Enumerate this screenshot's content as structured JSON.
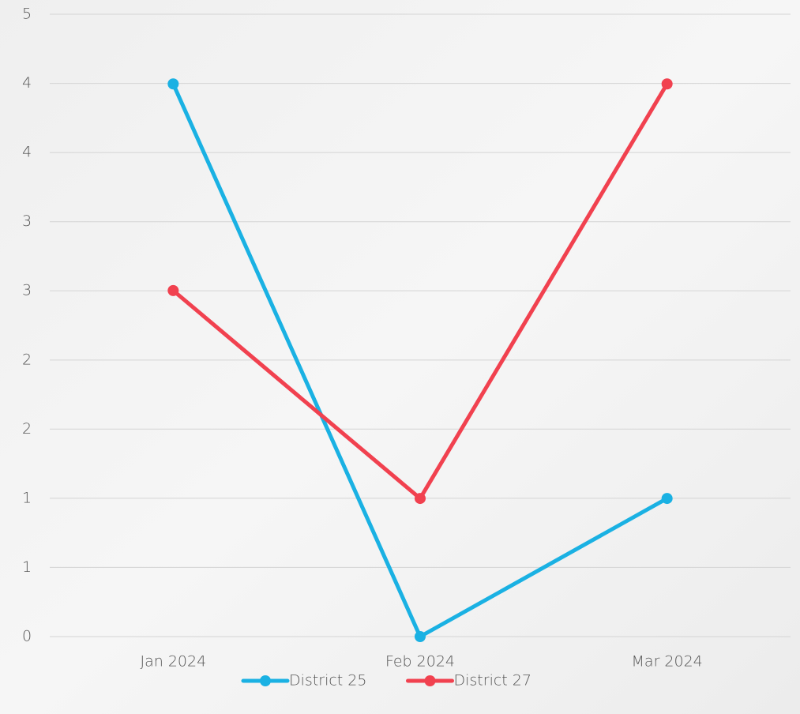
{
  "chart_data": {
    "type": "line",
    "categories": [
      "Jan 2024",
      "Feb 2024",
      "Mar 2024"
    ],
    "series": [
      {
        "name": "District 25",
        "color": "#1ab1e3",
        "values": [
          4.44,
          0,
          1.11
        ]
      },
      {
        "name": "District 27",
        "color": "#f1414f",
        "values": [
          2.78,
          1.11,
          4.44
        ]
      }
    ],
    "ylim": [
      0,
      5
    ],
    "yticks": [
      0,
      {
        "value": 0.556,
        "label": "1"
      },
      {
        "value": 1.111,
        "label": "1"
      },
      {
        "value": 1.667,
        "label": "2"
      },
      {
        "value": 2.222,
        "label": "2"
      },
      {
        "value": 2.778,
        "label": "3"
      },
      {
        "value": 3.333,
        "label": "3"
      },
      {
        "value": 3.889,
        "label": "4"
      },
      {
        "value": 4.444,
        "label": "4"
      },
      5
    ],
    "grid": true
  }
}
